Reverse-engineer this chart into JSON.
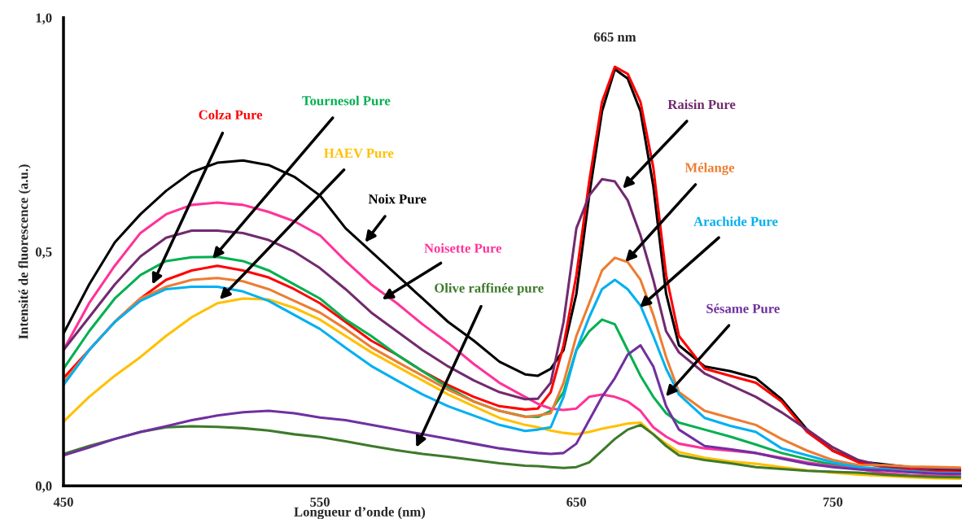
{
  "chart_data": {
    "type": "line",
    "xlabel": "Longueur d’onde (nm)",
    "ylabel": "Intensité de fluorescence (a.u.)",
    "x": [
      450,
      460,
      470,
      480,
      490,
      500,
      510,
      520,
      530,
      540,
      550,
      560,
      570,
      580,
      590,
      600,
      610,
      620,
      630,
      635,
      640,
      645,
      650,
      655,
      660,
      665,
      670,
      675,
      680,
      685,
      690,
      700,
      710,
      720,
      730,
      740,
      750,
      760,
      770,
      780,
      790,
      800
    ],
    "series": [
      {
        "name": "Noix Pure",
        "color": "#000000",
        "values": [
          0.325,
          0.43,
          0.52,
          0.58,
          0.63,
          0.67,
          0.69,
          0.695,
          0.685,
          0.66,
          0.62,
          0.55,
          0.5,
          0.45,
          0.4,
          0.35,
          0.31,
          0.265,
          0.238,
          0.235,
          0.25,
          0.29,
          0.41,
          0.62,
          0.8,
          0.89,
          0.87,
          0.8,
          0.64,
          0.41,
          0.3,
          0.255,
          0.245,
          0.23,
          0.185,
          0.12,
          0.075,
          0.052,
          0.046,
          0.04,
          0.035,
          0.033
        ]
      },
      {
        "name": "Colza Pure",
        "color": "#ff0000",
        "values": [
          0.23,
          0.29,
          0.35,
          0.4,
          0.44,
          0.46,
          0.47,
          0.46,
          0.445,
          0.42,
          0.39,
          0.35,
          0.31,
          0.28,
          0.245,
          0.215,
          0.19,
          0.17,
          0.163,
          0.165,
          0.2,
          0.3,
          0.45,
          0.65,
          0.82,
          0.895,
          0.88,
          0.82,
          0.68,
          0.45,
          0.32,
          0.25,
          0.235,
          0.22,
          0.18,
          0.115,
          0.075,
          0.05,
          0.04,
          0.034,
          0.031,
          0.03
        ]
      },
      {
        "name": "Tournesol Pure",
        "color": "#00b050",
        "values": [
          0.25,
          0.33,
          0.4,
          0.45,
          0.48,
          0.488,
          0.489,
          0.48,
          0.46,
          0.43,
          0.4,
          0.355,
          0.32,
          0.28,
          0.245,
          0.21,
          0.18,
          0.16,
          0.148,
          0.147,
          0.16,
          0.2,
          0.29,
          0.33,
          0.355,
          0.345,
          0.29,
          0.235,
          0.19,
          0.155,
          0.135,
          0.12,
          0.105,
          0.088,
          0.07,
          0.057,
          0.045,
          0.037,
          null,
          null,
          null,
          null
        ]
      },
      {
        "name": "HAEV Pure",
        "color": "#ffc000",
        "values": [
          0.137,
          0.19,
          0.235,
          0.275,
          0.32,
          0.36,
          0.39,
          0.4,
          0.398,
          0.38,
          0.355,
          0.32,
          0.285,
          0.255,
          0.225,
          0.195,
          0.17,
          0.145,
          0.13,
          0.125,
          0.118,
          0.113,
          0.11,
          0.115,
          0.122,
          0.127,
          0.133,
          0.135,
          0.11,
          0.09,
          0.072,
          0.06,
          0.052,
          0.047,
          0.04,
          0.033,
          0.028,
          0.024,
          0.021,
          0.018,
          0.016,
          0.015
        ]
      },
      {
        "name": "Noisette Pure",
        "color": "#ff3399",
        "values": [
          0.29,
          0.39,
          0.47,
          0.54,
          0.58,
          0.6,
          0.605,
          0.6,
          0.585,
          0.565,
          0.535,
          0.48,
          0.43,
          0.39,
          0.345,
          0.305,
          0.26,
          0.22,
          0.19,
          0.175,
          0.165,
          0.162,
          0.165,
          0.19,
          0.195,
          0.19,
          0.18,
          0.16,
          0.125,
          0.105,
          0.09,
          0.08,
          0.075,
          0.07,
          0.06,
          0.05,
          0.042,
          0.036,
          0.027,
          0.023,
          0.021,
          0.02
        ]
      },
      {
        "name": "Olive raffinée pure",
        "color": "#3d7a2a",
        "values": [
          0.068,
          0.085,
          0.1,
          0.115,
          0.125,
          0.127,
          0.126,
          0.123,
          0.118,
          0.11,
          0.104,
          0.095,
          0.085,
          0.076,
          0.068,
          0.062,
          0.055,
          0.048,
          0.043,
          0.042,
          0.04,
          0.038,
          0.04,
          0.05,
          0.075,
          0.1,
          0.12,
          0.13,
          0.11,
          0.085,
          0.065,
          0.055,
          0.048,
          0.04,
          0.036,
          0.032,
          0.03,
          0.028,
          0.024,
          0.021,
          0.019,
          0.018
        ]
      },
      {
        "name": "Raisin Pure",
        "color": "#722a6f",
        "values": [
          0.29,
          0.36,
          0.43,
          0.49,
          0.53,
          0.545,
          0.545,
          0.54,
          0.525,
          0.5,
          0.465,
          0.42,
          0.37,
          0.33,
          0.29,
          0.255,
          0.225,
          0.2,
          0.185,
          0.186,
          0.22,
          0.35,
          0.55,
          0.62,
          0.655,
          0.65,
          0.61,
          0.535,
          0.44,
          0.33,
          0.285,
          0.24,
          0.215,
          0.19,
          0.157,
          0.12,
          0.082,
          0.055,
          0.042,
          0.039,
          0.037,
          0.036
        ]
      },
      {
        "name": "Mélange",
        "color": "#ed7d31",
        "values": [
          0.22,
          0.29,
          0.35,
          0.4,
          0.425,
          0.44,
          0.444,
          0.437,
          0.42,
          0.395,
          0.37,
          0.335,
          0.296,
          0.265,
          0.235,
          0.205,
          0.18,
          0.16,
          0.147,
          0.15,
          0.155,
          0.22,
          0.32,
          0.39,
          0.46,
          0.487,
          0.478,
          0.44,
          0.365,
          0.275,
          0.2,
          0.16,
          0.145,
          0.13,
          0.1,
          0.075,
          0.055,
          0.044,
          0.044,
          0.041,
          0.04,
          0.039
        ]
      },
      {
        "name": "Arachide Pure",
        "color": "#00b0f0",
        "values": [
          0.215,
          0.29,
          0.35,
          0.395,
          0.42,
          0.425,
          0.425,
          0.415,
          0.395,
          0.365,
          0.335,
          0.295,
          0.256,
          0.225,
          0.195,
          0.17,
          0.15,
          0.13,
          0.117,
          0.12,
          0.125,
          0.19,
          0.29,
          0.36,
          0.42,
          0.44,
          0.42,
          0.385,
          0.32,
          0.25,
          0.195,
          0.145,
          0.128,
          0.115,
          0.08,
          0.065,
          0.05,
          0.04,
          0.036,
          0.031,
          0.028,
          0.027
        ]
      },
      {
        "name": "Sésame Pure",
        "color": "#7030a0",
        "values": [
          0.065,
          0.082,
          0.1,
          0.115,
          0.127,
          0.14,
          0.15,
          0.157,
          0.16,
          0.155,
          0.146,
          0.14,
          0.13,
          0.12,
          0.11,
          0.1,
          0.09,
          0.08,
          0.073,
          0.07,
          0.068,
          0.07,
          0.09,
          0.14,
          0.19,
          0.23,
          0.28,
          0.3,
          0.255,
          0.17,
          0.12,
          0.085,
          0.078,
          0.07,
          0.058,
          0.047,
          0.04,
          0.035,
          0.033,
          0.029,
          0.026,
          0.025
        ]
      }
    ],
    "annotations": [
      {
        "text": "665 nm",
        "x": 665,
        "y": 0.89
      }
    ],
    "xlim": [
      450,
      800
    ],
    "ylim": [
      0,
      1
    ],
    "xticks": [
      450,
      550,
      650,
      750
    ],
    "yticks": [
      {
        "value": 0,
        "label": "0,0"
      },
      {
        "value": 0.5,
        "label": "0,5"
      },
      {
        "value": 1,
        "label": "1,0"
      }
    ],
    "line_style": "solid"
  }
}
